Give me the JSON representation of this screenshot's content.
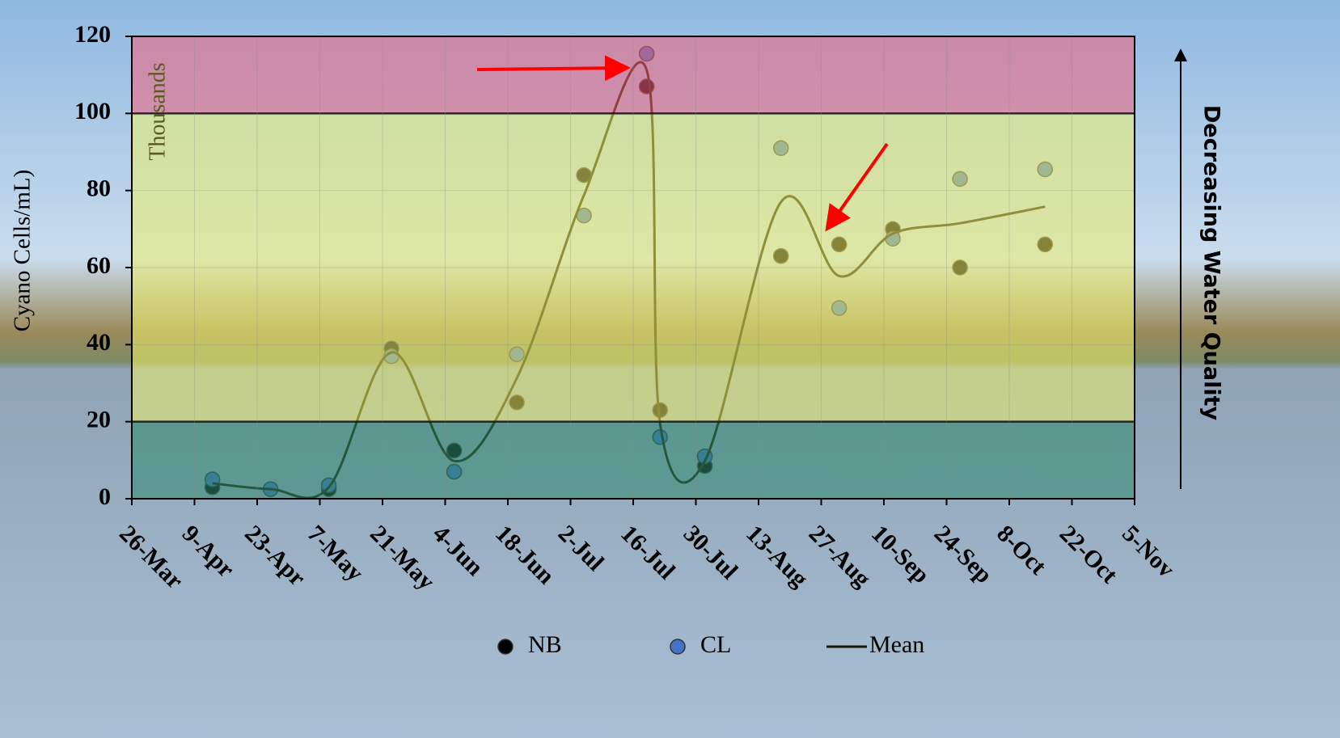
{
  "chart_data": {
    "type": "scatter",
    "y_label": "Cyano Cells/mL)",
    "y_unit_note": "Thousands",
    "right_annotation": "Decreasing Water Quality",
    "xlim": [
      "26-Mar",
      "5-Nov"
    ],
    "xticks": [
      "26-Mar",
      "9-Apr",
      "23-Apr",
      "7-May",
      "21-May",
      "4-Jun",
      "18-Jun",
      "2-Jul",
      "16-Jul",
      "30-Jul",
      "13-Aug",
      "27-Aug",
      "10-Sep",
      "24-Sep",
      "8-Oct",
      "22-Oct",
      "5-Nov"
    ],
    "ylim": [
      0,
      120
    ],
    "yticks": [
      0,
      20,
      40,
      60,
      80,
      100,
      120
    ],
    "grid": true,
    "bands": [
      {
        "from": 100,
        "to": 120,
        "color": "#f2607a"
      },
      {
        "from": 20,
        "to": 100,
        "color": "#eef06a"
      },
      {
        "from": 0,
        "to": 20,
        "color": "#2e8a6e"
      }
    ],
    "series": [
      {
        "name": "NB",
        "kind": "points",
        "color": "#000000",
        "x": [
          "13-Apr",
          "9-May",
          "23-May",
          "6-Jun",
          "20-Jun",
          "5-Jul",
          "19-Jul",
          "22-Jul",
          "1-Aug",
          "18-Aug",
          "31-Aug",
          "12-Sep",
          "27-Sep",
          "16-Oct"
        ],
        "values": [
          3,
          2.5,
          39,
          12.5,
          25,
          84,
          107,
          23,
          8.5,
          63,
          66,
          70,
          60,
          66
        ]
      },
      {
        "name": "CL",
        "kind": "points",
        "color": "#4472c4",
        "x": [
          "13-Apr",
          "26-Apr",
          "9-May",
          "23-May",
          "6-Jun",
          "20-Jun",
          "5-Jul",
          "19-Jul",
          "22-Jul",
          "1-Aug",
          "18-Aug",
          "31-Aug",
          "12-Sep",
          "27-Sep",
          "16-Oct"
        ],
        "values": [
          5,
          2.5,
          3.5,
          37,
          7,
          37.5,
          73.5,
          115.5,
          16,
          11,
          91,
          49.5,
          67.5,
          83,
          85.5
        ]
      },
      {
        "name": "Mean",
        "kind": "line",
        "color": "#1a1a00",
        "x": [
          "13-Apr",
          "26-Apr",
          "9-May",
          "23-May",
          "6-Jun",
          "20-Jun",
          "5-Jul",
          "19-Jul",
          "22-Jul",
          "1-Aug",
          "18-Aug",
          "31-Aug",
          "12-Sep",
          "27-Sep",
          "16-Oct"
        ],
        "values": [
          4,
          2.5,
          3,
          38,
          9.8,
          31.3,
          78.8,
          111.3,
          19.5,
          9.8,
          77,
          57.8,
          68.8,
          71.5,
          75.8
        ]
      }
    ]
  }
}
